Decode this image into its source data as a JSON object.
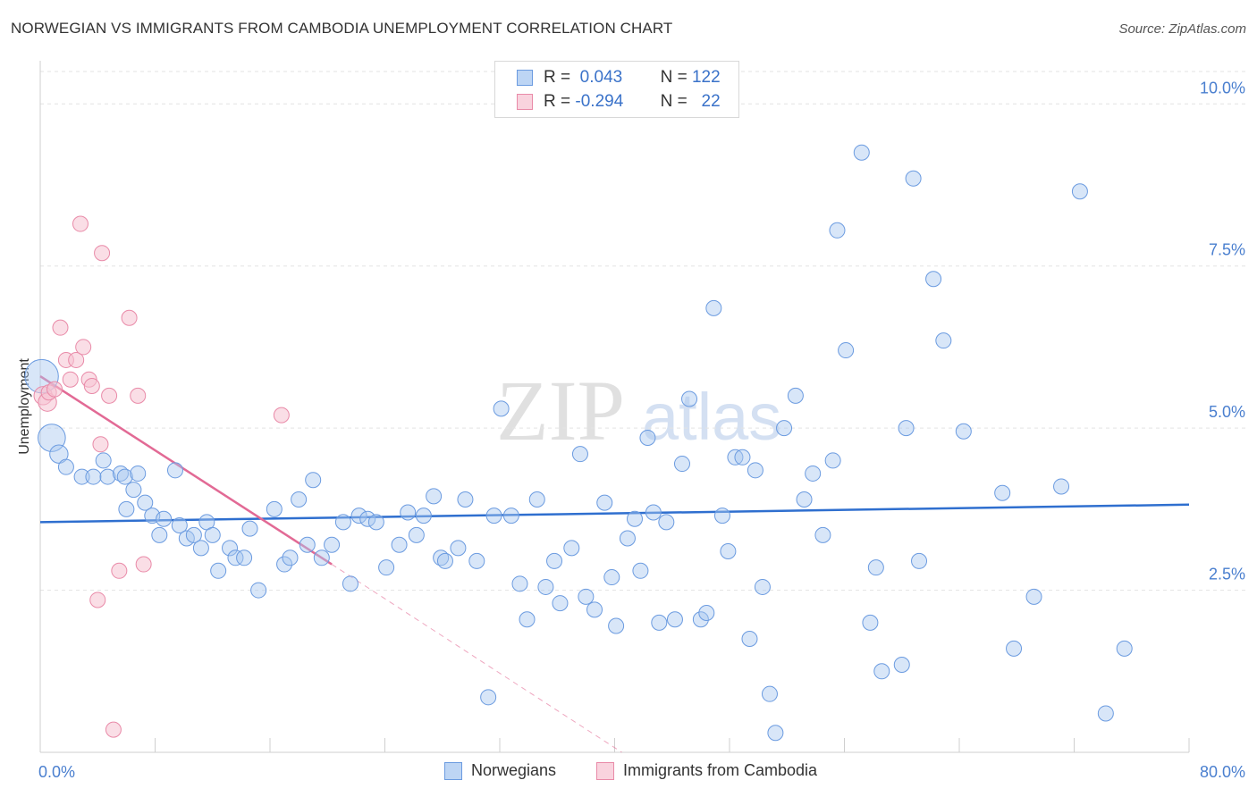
{
  "title": "NORWEGIAN VS IMMIGRANTS FROM CAMBODIA UNEMPLOYMENT CORRELATION CHART",
  "source": "Source: ZipAtlas.com",
  "watermark": {
    "zip": "ZIP",
    "atlas": "atlas"
  },
  "legend": {
    "r_label": "R =",
    "n_label": "N =",
    "entries": [
      {
        "r": "0.043",
        "n": "122",
        "color": "#a9c8f0",
        "stroke": "#6b9be0"
      },
      {
        "r": "-0.294",
        "n": "22",
        "color": "#f6c3d2",
        "stroke": "#e98aa8"
      }
    ]
  },
  "bottom_legend": [
    "Norwegians",
    "Immigrants from Cambodia"
  ],
  "chart_data": {
    "type": "scatter",
    "title": "NORWEGIAN VS IMMIGRANTS FROM CAMBODIA UNEMPLOYMENT CORRELATION CHART",
    "xlabel": "",
    "ylabel": "Unemployment",
    "xlim": [
      0,
      80
    ],
    "ylim": [
      0,
      10.5
    ],
    "x_ticks": [
      "0.0%",
      "80.0%"
    ],
    "y_ticks": [
      {
        "value": 2.5,
        "label": "2.5%"
      },
      {
        "value": 5.0,
        "label": "5.0%"
      },
      {
        "value": 7.5,
        "label": "7.5%"
      },
      {
        "value": 10.0,
        "label": "10.0%"
      }
    ],
    "grid": "horizontal dashed",
    "legend_position": "top-center",
    "series": [
      {
        "name": "Norwegians",
        "color": "#a9c8f0",
        "stroke": "#6b9be0",
        "trend": {
          "x": [
            0,
            80
          ],
          "y": [
            3.55,
            3.82
          ],
          "color": "#2f6fcf"
        },
        "points": [
          [
            0.1,
            5.8,
            2.2
          ],
          [
            0.8,
            4.85,
            1.8
          ],
          [
            1.3,
            4.6,
            1.2
          ],
          [
            1.8,
            4.4,
            1.0
          ],
          [
            2.9,
            4.25,
            1.0
          ],
          [
            3.7,
            4.25,
            1.0
          ],
          [
            4.4,
            4.5,
            1.0
          ],
          [
            4.7,
            4.25,
            1.0
          ],
          [
            5.6,
            4.3,
            1.0
          ],
          [
            5.9,
            4.25,
            1.0
          ],
          [
            6.0,
            3.75,
            1.0
          ],
          [
            6.5,
            4.05,
            1.0
          ],
          [
            6.8,
            4.3,
            1.0
          ],
          [
            7.3,
            3.85,
            1.0
          ],
          [
            7.8,
            3.65,
            1.0
          ],
          [
            8.3,
            3.35,
            1.0
          ],
          [
            8.6,
            3.6,
            1.0
          ],
          [
            9.4,
            4.35,
            1.0
          ],
          [
            9.7,
            3.5,
            1.0
          ],
          [
            10.2,
            3.3,
            1.0
          ],
          [
            10.7,
            3.35,
            1.0
          ],
          [
            11.2,
            3.15,
            1.0
          ],
          [
            11.6,
            3.55,
            1.0
          ],
          [
            12.0,
            3.35,
            1.0
          ],
          [
            12.4,
            2.8,
            1.0
          ],
          [
            13.2,
            3.15,
            1.0
          ],
          [
            13.6,
            3.0,
            1.0
          ],
          [
            14.2,
            3.0,
            1.0
          ],
          [
            14.6,
            3.45,
            1.0
          ],
          [
            15.2,
            2.5,
            1.0
          ],
          [
            16.3,
            3.75,
            1.0
          ],
          [
            17.0,
            2.9,
            1.0
          ],
          [
            17.4,
            3.0,
            1.0
          ],
          [
            18.0,
            3.9,
            1.0
          ],
          [
            18.6,
            3.2,
            1.0
          ],
          [
            19.0,
            4.2,
            1.0
          ],
          [
            19.6,
            3.0,
            1.0
          ],
          [
            20.3,
            3.2,
            1.0
          ],
          [
            21.1,
            3.55,
            1.0
          ],
          [
            21.6,
            2.6,
            1.0
          ],
          [
            22.2,
            3.65,
            1.0
          ],
          [
            22.8,
            3.6,
            1.0
          ],
          [
            23.4,
            3.55,
            1.0
          ],
          [
            24.1,
            2.85,
            1.0
          ],
          [
            25.0,
            3.2,
            1.0
          ],
          [
            25.6,
            3.7,
            1.0
          ],
          [
            26.2,
            3.35,
            1.0
          ],
          [
            26.7,
            3.65,
            1.0
          ],
          [
            27.4,
            3.95,
            1.0
          ],
          [
            27.9,
            3.0,
            1.0
          ],
          [
            28.2,
            2.95,
            1.0
          ],
          [
            29.1,
            3.15,
            1.0
          ],
          [
            29.6,
            3.9,
            1.0
          ],
          [
            30.4,
            2.95,
            1.0
          ],
          [
            31.2,
            0.85,
            1.0
          ],
          [
            31.6,
            3.65,
            1.0
          ],
          [
            32.1,
            5.3,
            1.0
          ],
          [
            32.8,
            3.65,
            1.0
          ],
          [
            33.4,
            2.6,
            1.0
          ],
          [
            33.9,
            2.05,
            1.0
          ],
          [
            34.6,
            3.9,
            1.0
          ],
          [
            35.2,
            2.55,
            1.0
          ],
          [
            35.8,
            2.95,
            1.0
          ],
          [
            36.2,
            2.3,
            1.0
          ],
          [
            37.0,
            3.15,
            1.0
          ],
          [
            37.6,
            4.6,
            1.0
          ],
          [
            38.0,
            2.4,
            1.0
          ],
          [
            38.6,
            2.2,
            1.0
          ],
          [
            39.3,
            3.85,
            1.0
          ],
          [
            39.8,
            2.7,
            1.0
          ],
          [
            40.1,
            1.95,
            1.0
          ],
          [
            40.9,
            3.3,
            1.0
          ],
          [
            41.4,
            3.6,
            1.0
          ],
          [
            41.8,
            2.8,
            1.0
          ],
          [
            42.3,
            4.85,
            1.0
          ],
          [
            42.7,
            3.7,
            1.0
          ],
          [
            43.1,
            2.0,
            1.0
          ],
          [
            43.6,
            3.55,
            1.0
          ],
          [
            44.2,
            2.05,
            1.0
          ],
          [
            44.7,
            4.45,
            1.0
          ],
          [
            45.2,
            5.45,
            1.0
          ],
          [
            46.0,
            2.05,
            1.0
          ],
          [
            46.4,
            2.15,
            1.0
          ],
          [
            46.9,
            6.85,
            1.0
          ],
          [
            47.5,
            3.65,
            1.0
          ],
          [
            47.9,
            3.1,
            1.0
          ],
          [
            48.4,
            4.55,
            1.0
          ],
          [
            48.9,
            4.55,
            1.0
          ],
          [
            49.4,
            1.75,
            1.0
          ],
          [
            49.8,
            4.35,
            1.0
          ],
          [
            50.3,
            2.55,
            1.0
          ],
          [
            50.8,
            0.9,
            1.0
          ],
          [
            51.2,
            0.3,
            1.0
          ],
          [
            51.8,
            5.0,
            1.0
          ],
          [
            52.6,
            5.5,
            1.0
          ],
          [
            53.2,
            3.9,
            1.0
          ],
          [
            53.8,
            4.3,
            1.0
          ],
          [
            54.5,
            3.35,
            1.0
          ],
          [
            55.2,
            4.5,
            1.0
          ],
          [
            55.5,
            8.05,
            1.0
          ],
          [
            56.1,
            6.2,
            1.0
          ],
          [
            57.2,
            9.25,
            1.0
          ],
          [
            57.8,
            2.0,
            1.0
          ],
          [
            58.2,
            2.85,
            1.0
          ],
          [
            58.6,
            1.25,
            1.0
          ],
          [
            60.0,
            1.35,
            1.0
          ],
          [
            60.3,
            5.0,
            1.0
          ],
          [
            60.8,
            8.85,
            1.0
          ],
          [
            61.2,
            2.95,
            1.0
          ],
          [
            62.2,
            7.3,
            1.0
          ],
          [
            62.9,
            6.35,
            1.0
          ],
          [
            64.3,
            4.95,
            1.0
          ],
          [
            67.0,
            4.0,
            1.0
          ],
          [
            67.8,
            1.6,
            1.0
          ],
          [
            69.2,
            2.4,
            1.0
          ],
          [
            71.1,
            4.1,
            1.0
          ],
          [
            72.4,
            8.65,
            1.0
          ],
          [
            74.2,
            0.6,
            1.0
          ],
          [
            75.5,
            1.6,
            1.0
          ]
        ]
      },
      {
        "name": "Immigrants from Cambodia",
        "color": "#f6c3d2",
        "stroke": "#e98aa8",
        "trend": {
          "x": [
            0,
            20.3
          ],
          "y": [
            5.8,
            2.9
          ],
          "color": "#e26a95",
          "dashed_to": [
            40.5,
            0
          ]
        },
        "points": [
          [
            0.2,
            5.5,
            1.2
          ],
          [
            0.5,
            5.4,
            1.2
          ],
          [
            0.6,
            5.55,
            1.0
          ],
          [
            1.0,
            5.6,
            1.0
          ],
          [
            1.4,
            6.55,
            1.0
          ],
          [
            1.8,
            6.05,
            1.0
          ],
          [
            2.1,
            5.75,
            1.0
          ],
          [
            2.5,
            6.05,
            1.0
          ],
          [
            2.8,
            8.15,
            1.0
          ],
          [
            3.0,
            6.25,
            1.0
          ],
          [
            3.4,
            5.75,
            1.0
          ],
          [
            3.6,
            5.65,
            1.0
          ],
          [
            4.0,
            2.35,
            1.0
          ],
          [
            4.2,
            4.75,
            1.0
          ],
          [
            4.3,
            7.7,
            1.0
          ],
          [
            4.8,
            5.5,
            1.0
          ],
          [
            5.1,
            0.35,
            1.0
          ],
          [
            5.5,
            2.8,
            1.0
          ],
          [
            6.2,
            6.7,
            1.0
          ],
          [
            6.8,
            5.5,
            1.0
          ],
          [
            7.2,
            2.9,
            1.0
          ],
          [
            16.8,
            5.2,
            1.0
          ]
        ]
      }
    ]
  }
}
